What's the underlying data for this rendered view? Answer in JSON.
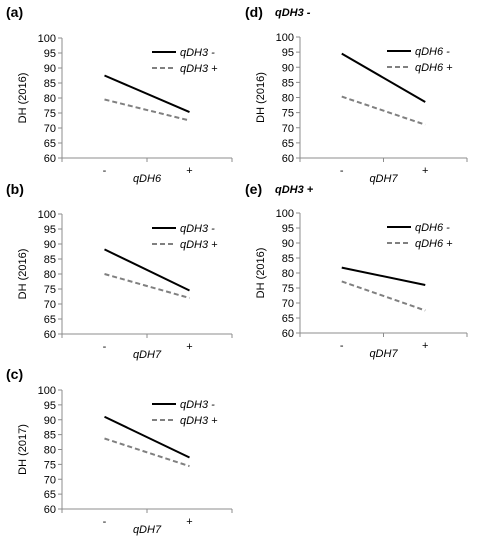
{
  "chart_data": [
    {
      "panel_label": "(a)",
      "subtitle": "",
      "type": "line",
      "x": [
        "-",
        "+"
      ],
      "xlabel": "qDH6",
      "ylabel": "DH (2016)",
      "ylim": [
        60,
        100
      ],
      "yticks": [
        60,
        65,
        70,
        75,
        80,
        85,
        90,
        95,
        100
      ],
      "legend_position": "top-right",
      "grid": false,
      "series": [
        {
          "name": "qDH3 -",
          "values": [
            87.5,
            75.3
          ],
          "color": "#000000",
          "dashed": false
        },
        {
          "name": "qDH3 +",
          "values": [
            79.5,
            72.5
          ],
          "color": "#808080",
          "dashed": true
        }
      ]
    },
    {
      "panel_label": "(b)",
      "subtitle": "",
      "type": "line",
      "x": [
        "-",
        "+"
      ],
      "xlabel": "qDH7",
      "ylabel": "DH (2016)",
      "ylim": [
        60,
        100
      ],
      "yticks": [
        60,
        65,
        70,
        75,
        80,
        85,
        90,
        95,
        100
      ],
      "legend_position": "top-right",
      "grid": false,
      "series": [
        {
          "name": "qDH3 -",
          "values": [
            88.2,
            74.5
          ],
          "color": "#000000",
          "dashed": false
        },
        {
          "name": "qDH3 +",
          "values": [
            80.0,
            72.0
          ],
          "color": "#808080",
          "dashed": true
        }
      ]
    },
    {
      "panel_label": "(c)",
      "subtitle": "",
      "type": "line",
      "x": [
        "-",
        "+"
      ],
      "xlabel": "qDH7",
      "ylabel": "DH (2017)",
      "ylim": [
        60,
        100
      ],
      "yticks": [
        60,
        65,
        70,
        75,
        80,
        85,
        90,
        95,
        100
      ],
      "legend_position": "top-right",
      "grid": false,
      "series": [
        {
          "name": "qDH3 -",
          "values": [
            91.0,
            77.3
          ],
          "color": "#000000",
          "dashed": false
        },
        {
          "name": "qDH3 +",
          "values": [
            83.7,
            74.4
          ],
          "color": "#808080",
          "dashed": true
        }
      ]
    },
    {
      "panel_label": "(d)",
      "subtitle": "qDH3 -",
      "type": "line",
      "x": [
        "-",
        "+"
      ],
      "xlabel": "qDH7",
      "ylabel": "DH (2016)",
      "ylim": [
        60,
        100
      ],
      "yticks": [
        60,
        65,
        70,
        75,
        80,
        85,
        90,
        95,
        100
      ],
      "legend_position": "top-right",
      "grid": false,
      "series": [
        {
          "name": "qDH6 -",
          "values": [
            94.5,
            78.5
          ],
          "color": "#000000",
          "dashed": false
        },
        {
          "name": "qDH6 +",
          "values": [
            80.3,
            71.0
          ],
          "color": "#808080",
          "dashed": true
        }
      ]
    },
    {
      "panel_label": "(e)",
      "subtitle": "qDH3 +",
      "type": "line",
      "x": [
        "-",
        "+"
      ],
      "xlabel": "qDH7",
      "ylabel": "DH (2016)",
      "ylim": [
        60,
        100
      ],
      "yticks": [
        60,
        65,
        70,
        75,
        80,
        85,
        90,
        95,
        100
      ],
      "legend_position": "top-right",
      "grid": false,
      "series": [
        {
          "name": "qDH6 -",
          "values": [
            81.8,
            76.0
          ],
          "color": "#000000",
          "dashed": false
        },
        {
          "name": "qDH6 +",
          "values": [
            77.2,
            67.5
          ],
          "color": "#808080",
          "dashed": true
        }
      ]
    }
  ]
}
